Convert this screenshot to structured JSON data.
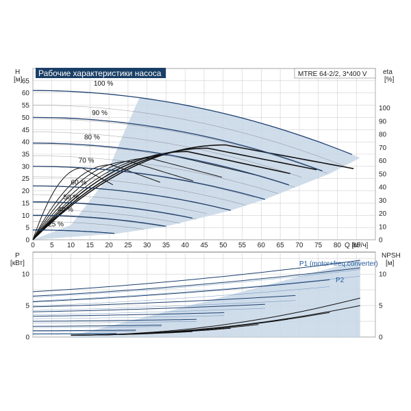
{
  "chart_data": {
    "type": "line",
    "title": "Рабочие характеристики насоса",
    "model": "MTRE 64-2/2, 3*400 V",
    "top": {
      "ylabel": "H",
      "yunit": "[м]",
      "y2label": "eta",
      "y2unit": "[%]",
      "xlabel": "Q [м³/ч]",
      "xlim": [
        0,
        90
      ],
      "ylim": [
        0,
        70
      ],
      "y2lim": [
        0,
        130
      ],
      "xticks": [
        "0",
        "5",
        "10",
        "15",
        "20",
        "25",
        "30",
        "35",
        "40",
        "45",
        "50",
        "55",
        "60",
        "65",
        "70",
        "75",
        "80",
        "85"
      ],
      "yticks": [
        "0",
        "5",
        "10",
        "15",
        "20",
        "25",
        "30",
        "35",
        "40",
        "45",
        "50",
        "55",
        "60",
        "65"
      ],
      "y2ticks": [
        "0",
        "10",
        "20",
        "30",
        "40",
        "50",
        "60",
        "70",
        "80",
        "90",
        "100"
      ],
      "series": [
        {
          "name": "100 %",
          "label_at": [
            16,
            63
          ],
          "shutoff": 61,
          "qmax": 86,
          "hmax": 33.5
        },
        {
          "name": "90 %",
          "label_at": [
            15.5,
            51
          ],
          "shutoff": 50,
          "qmax": 78,
          "hmax": 27
        },
        {
          "name": "80 %",
          "label_at": [
            13.5,
            41
          ],
          "shutoff": 39.5,
          "qmax": 69,
          "hmax": 21.5
        },
        {
          "name": "70 %",
          "label_at": [
            12,
            31.5
          ],
          "shutoff": 30,
          "qmax": 61,
          "hmax": 16.5
        },
        {
          "name": "60 %",
          "label_at": [
            10,
            22.5
          ],
          "shutoff": 22,
          "qmax": 52,
          "hmax": 12
        },
        {
          "name": "50 %",
          "label_at": [
            8,
            16.5
          ],
          "shutoff": 15.5,
          "qmax": 43,
          "hmax": 8.5
        },
        {
          "name": "40 %",
          "label_at": [
            6.5,
            11.5
          ],
          "shutoff": 10,
          "qmax": 35,
          "hmax": 5.5
        },
        {
          "name": "25 %",
          "label_at": [
            4,
            5.5
          ],
          "shutoff": 4,
          "qmax": 22,
          "hmax": 2.5
        }
      ],
      "eta_peak": 72
    },
    "bottom": {
      "ylabel": "P",
      "yunit": "[кВт]",
      "y2label": "NPSH",
      "y2unit": "[м]",
      "xlim": [
        0,
        90
      ],
      "ylim": [
        0,
        13.5
      ],
      "y2lim": [
        0,
        13.5
      ],
      "yticks": [
        "0",
        "5",
        "10"
      ],
      "y2ticks": [
        "0",
        "5",
        "10"
      ],
      "legend": [
        "P1 (motor+freq.converter)",
        "P2"
      ],
      "p1_start": [
        7.2,
        6.5,
        5.6,
        4.8,
        4.0,
        3.3,
        2.5,
        1.7,
        1.0,
        0.5
      ],
      "p1_end": [
        12.2,
        11.0,
        9.1,
        6.6,
        5.2,
        3.9,
        2.8,
        1.9,
        1.1,
        0.55
      ],
      "p1_qmax": [
        86,
        86,
        78,
        69,
        61,
        52,
        43,
        35,
        28,
        22
      ],
      "npsh_end": [
        6.2,
        5.0,
        3.9,
        3.0,
        2.1,
        1.4,
        0.9
      ]
    }
  }
}
